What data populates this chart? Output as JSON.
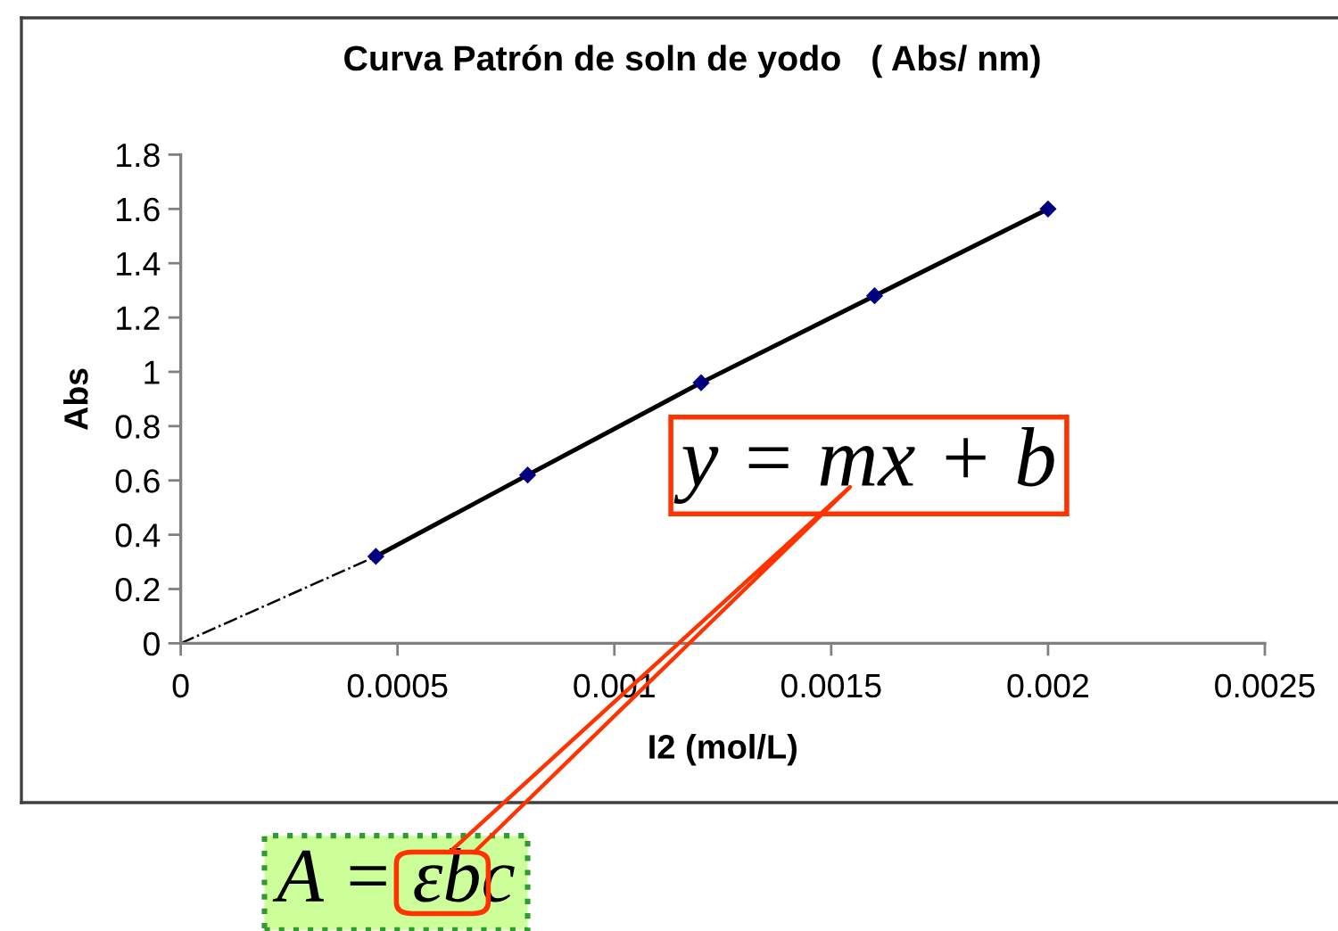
{
  "chart_data": {
    "type": "line",
    "title": "Curva Patrón de soln de yodo   ( Abs/ nm)",
    "xlabel": "I2 (mol/L)",
    "ylabel": "Abs",
    "series": [
      {
        "x": [
          0,
          0.00045
        ],
        "values": [
          0,
          0.32
        ],
        "color": "#000000",
        "line_style": "dashdot"
      },
      {
        "x": [
          0.00045,
          0.0008,
          0.0012,
          0.0016,
          0.002
        ],
        "values": [
          0.32,
          0.62,
          0.96,
          1.28,
          1.6
        ],
        "color": "#000000",
        "line_style": "solid"
      },
      {
        "type": "scatter",
        "x": [
          0.00045,
          0.0008,
          0.0012,
          0.0016,
          0.002
        ],
        "values": [
          0.32,
          0.62,
          0.96,
          1.28,
          1.6
        ],
        "color": "#000080",
        "marker": "diamond"
      }
    ],
    "xlim": [
      0,
      0.0025
    ],
    "xticks": [
      0,
      0.0005,
      0.001,
      0.0015,
      0.002,
      0.0025
    ],
    "ylim": [
      0,
      1.8
    ],
    "yticks": [
      0,
      0.2,
      0.4,
      0.6,
      0.8,
      1,
      1.2,
      1.4,
      1.6,
      1.8
    ],
    "grid": false,
    "legend": false,
    "annotations": [
      "y = mx + b",
      "A = εbc"
    ]
  }
}
